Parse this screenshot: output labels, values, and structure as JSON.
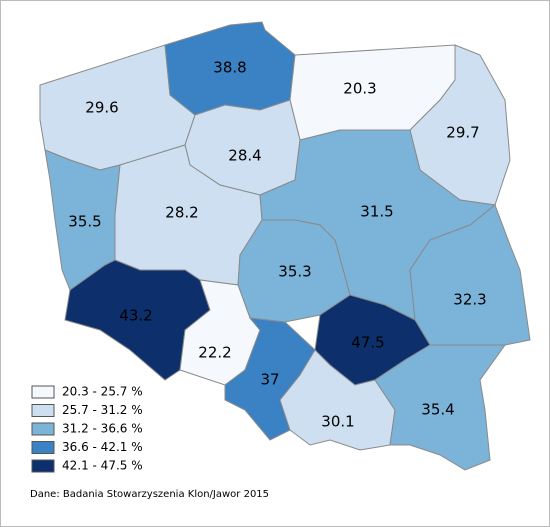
{
  "regions": [
    {
      "value": 29.6,
      "color": "#cddff0"
    },
    {
      "value": 38.8,
      "color": "#3a82c4"
    },
    {
      "value": 20.3,
      "color": "#f5f9fd"
    },
    {
      "value": 29.7,
      "color": "#cddff0"
    },
    {
      "value": 28.4,
      "color": "#cddff0"
    },
    {
      "value": 35.5,
      "color": "#7bb3d9"
    },
    {
      "value": 28.2,
      "color": "#cddff0"
    },
    {
      "value": 31.5,
      "color": "#7bb3d9"
    },
    {
      "value": 35.3,
      "color": "#7bb3d9"
    },
    {
      "value": 32.3,
      "color": "#7bb3d9"
    },
    {
      "value": 43.2,
      "color": "#0d2f6b"
    },
    {
      "value": 22.2,
      "color": "#f5f9fd"
    },
    {
      "value": 37,
      "color": "#3a82c4"
    },
    {
      "value": 47.5,
      "color": "#0d2f6b"
    },
    {
      "value": 30.1,
      "color": "#cddff0"
    },
    {
      "value": 35.4,
      "color": "#7bb3d9"
    }
  ],
  "legend": [
    {
      "label": "20.3 - 25.7 %",
      "color": "#f5f9fd"
    },
    {
      "label": "25.7 - 31.2 %",
      "color": "#cddff0"
    },
    {
      "label": "31.2 - 36.6 %",
      "color": "#7bb3d9"
    },
    {
      "label": "36.6 - 42.1 %",
      "color": "#3a82c4"
    },
    {
      "label": "42.1 - 47.5 %",
      "color": "#0d2f6b"
    }
  ],
  "source": "Dane: Badania Stowarzyszenia Klon/Jawor 2015"
}
